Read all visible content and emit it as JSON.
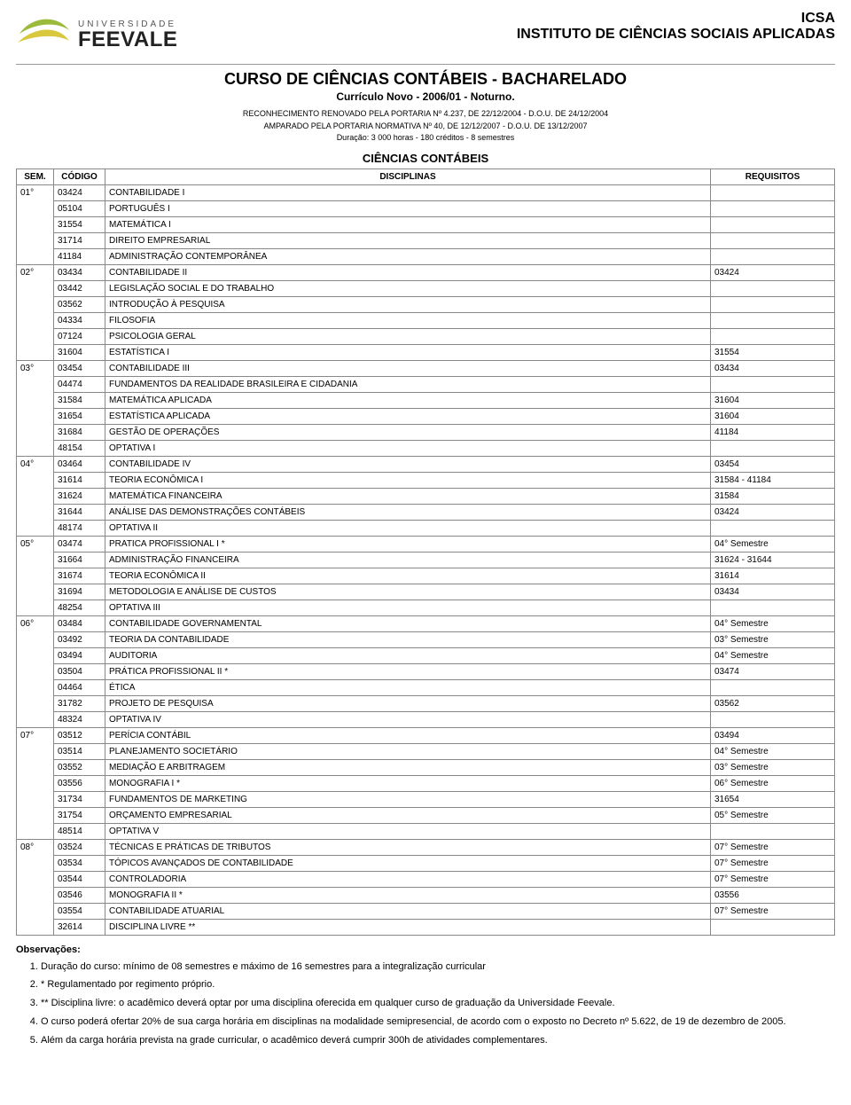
{
  "logo": {
    "uni": "UNIVERSIDADE",
    "name": "FEEVALE"
  },
  "institute": {
    "acronym": "ICSA",
    "full": "INSTITUTO DE CIÊNCIAS SOCIAIS APLICADAS"
  },
  "course": {
    "title": "CURSO DE CIÊNCIAS CONTÁBEIS - BACHARELADO",
    "subtitle": "Currículo Novo - 2006/01 - Noturno.",
    "recognition1": "RECONHECIMENTO RENOVADO PELA PORTARIA Nº 4.237, DE 22/12/2004 - D.O.U. DE 24/12/2004",
    "recognition2": "AMPARADO PELA PORTARIA NORMATIVA Nº 40, DE 12/12/2007 - D.O.U. DE 13/12/2007",
    "duration": "Duração: 3 000 horas - 180 créditos - 8 semestres",
    "department": "CIÊNCIAS CONTÁBEIS"
  },
  "table": {
    "headers": {
      "sem": "SEM.",
      "codigo": "CÓDIGO",
      "disciplinas": "DISCIPLINAS",
      "requisitos": "REQUISITOS"
    },
    "semesters": [
      {
        "sem": "01°",
        "rows": [
          {
            "cod": "03424",
            "disc": "CONTABILIDADE I",
            "req": ""
          },
          {
            "cod": "05104",
            "disc": "PORTUGUÊS I",
            "req": ""
          },
          {
            "cod": "31554",
            "disc": "MATEMÁTICA I",
            "req": ""
          },
          {
            "cod": "31714",
            "disc": "DIREITO EMPRESARIAL",
            "req": ""
          },
          {
            "cod": "41184",
            "disc": "ADMINISTRAÇÃO CONTEMPORÂNEA",
            "req": ""
          }
        ]
      },
      {
        "sem": "02°",
        "rows": [
          {
            "cod": "03434",
            "disc": "CONTABILIDADE II",
            "req": "03424"
          },
          {
            "cod": "03442",
            "disc": "LEGISLAÇÃO SOCIAL E DO TRABALHO",
            "req": ""
          },
          {
            "cod": "03562",
            "disc": "INTRODUÇÃO À PESQUISA",
            "req": ""
          },
          {
            "cod": "04334",
            "disc": "FILOSOFIA",
            "req": ""
          },
          {
            "cod": "07124",
            "disc": "PSICOLOGIA GERAL",
            "req": ""
          },
          {
            "cod": "31604",
            "disc": "ESTATÍSTICA I",
            "req": "31554"
          }
        ]
      },
      {
        "sem": "03°",
        "rows": [
          {
            "cod": "03454",
            "disc": "CONTABILIDADE III",
            "req": "03434"
          },
          {
            "cod": "04474",
            "disc": "FUNDAMENTOS DA REALIDADE BRASILEIRA E CIDADANIA",
            "req": ""
          },
          {
            "cod": "31584",
            "disc": "MATEMÁTICA APLICADA",
            "req": "31604"
          },
          {
            "cod": "31654",
            "disc": "ESTATÍSTICA APLICADA",
            "req": "31604"
          },
          {
            "cod": "31684",
            "disc": "GESTÃO DE OPERAÇÕES",
            "req": "41184"
          },
          {
            "cod": "48154",
            "disc": "OPTATIVA I",
            "req": ""
          }
        ]
      },
      {
        "sem": "04°",
        "rows": [
          {
            "cod": "03464",
            "disc": "CONTABILIDADE IV",
            "req": "03454"
          },
          {
            "cod": "31614",
            "disc": "TEORIA ECONÔMICA I",
            "req": "31584 - 41184"
          },
          {
            "cod": "31624",
            "disc": "MATEMÁTICA FINANCEIRA",
            "req": "31584"
          },
          {
            "cod": "31644",
            "disc": "ANÁLISE DAS DEMONSTRAÇÕES CONTÁBEIS",
            "req": "03424"
          },
          {
            "cod": "48174",
            "disc": "OPTATIVA II",
            "req": ""
          }
        ]
      },
      {
        "sem": "05°",
        "rows": [
          {
            "cod": "03474",
            "disc": "PRATICA PROFISSIONAL I *",
            "req": "04° Semestre"
          },
          {
            "cod": "31664",
            "disc": "ADMINISTRAÇÃO FINANCEIRA",
            "req": "31624 - 31644"
          },
          {
            "cod": "31674",
            "disc": "TEORIA ECONÔMICA II",
            "req": "31614"
          },
          {
            "cod": "31694",
            "disc": "METODOLOGIA E ANÁLISE DE CUSTOS",
            "req": "03434"
          },
          {
            "cod": "48254",
            "disc": "OPTATIVA III",
            "req": ""
          }
        ]
      },
      {
        "sem": "06°",
        "rows": [
          {
            "cod": "03484",
            "disc": "CONTABILIDADE GOVERNAMENTAL",
            "req": "04° Semestre"
          },
          {
            "cod": "03492",
            "disc": "TEORIA DA CONTABILIDADE",
            "req": "03° Semestre"
          },
          {
            "cod": "03494",
            "disc": "AUDITORIA",
            "req": "04° Semestre"
          },
          {
            "cod": "03504",
            "disc": "PRÁTICA PROFISSIONAL II *",
            "req": "03474"
          },
          {
            "cod": "04464",
            "disc": "ÉTICA",
            "req": ""
          },
          {
            "cod": "31782",
            "disc": "PROJETO DE PESQUISA",
            "req": "03562"
          },
          {
            "cod": "48324",
            "disc": "OPTATIVA IV",
            "req": ""
          }
        ]
      },
      {
        "sem": "07°",
        "rows": [
          {
            "cod": "03512",
            "disc": "PERÍCIA CONTÁBIL",
            "req": "03494"
          },
          {
            "cod": "03514",
            "disc": "PLANEJAMENTO SOCIETÁRIO",
            "req": "04° Semestre"
          },
          {
            "cod": "03552",
            "disc": "MEDIAÇÃO E ARBITRAGEM",
            "req": "03° Semestre"
          },
          {
            "cod": "03556",
            "disc": "MONOGRAFIA I *",
            "req": "06° Semestre"
          },
          {
            "cod": "31734",
            "disc": "FUNDAMENTOS DE MARKETING",
            "req": "31654"
          },
          {
            "cod": "31754",
            "disc": "ORÇAMENTO EMPRESARIAL",
            "req": "05° Semestre"
          },
          {
            "cod": "48514",
            "disc": "OPTATIVA V",
            "req": ""
          }
        ]
      },
      {
        "sem": "08°",
        "rows": [
          {
            "cod": "03524",
            "disc": "TÉCNICAS E PRÁTICAS DE TRIBUTOS",
            "req": "07° Semestre"
          },
          {
            "cod": "03534",
            "disc": "TÓPICOS AVANÇADOS DE CONTABILIDADE",
            "req": "07° Semestre"
          },
          {
            "cod": "03544",
            "disc": "CONTROLADORIA",
            "req": "07° Semestre"
          },
          {
            "cod": "03546",
            "disc": "MONOGRAFIA II *",
            "req": "03556"
          },
          {
            "cod": "03554",
            "disc": "CONTABILIDADE ATUARIAL",
            "req": "07° Semestre"
          },
          {
            "cod": "32614",
            "disc": "DISCIPLINA LIVRE **",
            "req": ""
          }
        ]
      }
    ]
  },
  "obs": {
    "title": "Observações:",
    "items": [
      "Duração do curso: mínimo de 08 semestres e máximo de 16 semestres para a integralização curricular",
      "* Regulamentado por regimento próprio.",
      "** Disciplina livre: o acadêmico deverá optar por uma disciplina oferecida em qualquer curso de graduação da Universidade Feevale.",
      "O curso poderá ofertar 20% de sua carga horária em disciplinas na modalidade semipresencial, de acordo com o exposto no Decreto nº 5.622, de 19 de dezembro de 2005.",
      "Além da carga horária prevista na grade curricular, o acadêmico deverá cumprir 300h de atividades complementares."
    ]
  },
  "colors": {
    "accent_green": "#9cba3b",
    "accent_yellow": "#d9c83e",
    "text": "#000000",
    "border": "#888888"
  }
}
